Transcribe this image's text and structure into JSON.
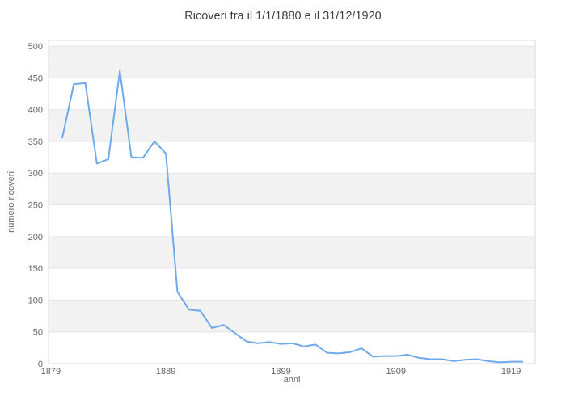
{
  "title": "Ricoveri tra il 1/1/1880 e il 31/12/1920",
  "chart_data": {
    "type": "line",
    "title": "Ricoveri tra il 1/1/1880 e il 31/12/1920",
    "xlabel": "anni",
    "ylabel": "numero ricoveri",
    "x_ticks": [
      1879,
      1889,
      1899,
      1909,
      1919
    ],
    "y_ticks": [
      0,
      50,
      100,
      150,
      200,
      250,
      300,
      350,
      400,
      450,
      500
    ],
    "xlim": [
      1878.8,
      1921.1
    ],
    "ylim": [
      0,
      509
    ],
    "grid": "horizontal-with-alternating-bands",
    "legend": "none",
    "series": [
      {
        "x": [
          1880,
          1881,
          1882,
          1883,
          1884,
          1885,
          1886,
          1887,
          1888,
          1889,
          1890,
          1891,
          1892,
          1893,
          1894,
          1895,
          1896,
          1897,
          1898,
          1899,
          1900,
          1901,
          1902,
          1903,
          1904,
          1905,
          1906,
          1907,
          1908,
          1909,
          1910,
          1911,
          1912,
          1913,
          1914,
          1915,
          1916,
          1917,
          1918,
          1919,
          1920
        ],
        "values": [
          356,
          440,
          442,
          315,
          322,
          461,
          325,
          324,
          350,
          331,
          113,
          85,
          83,
          56,
          61,
          48,
          35,
          32,
          34,
          31,
          32,
          27,
          30,
          17,
          16,
          18,
          24,
          11,
          12,
          12,
          14,
          9,
          7,
          7,
          4,
          6,
          7,
          4,
          2,
          3,
          3
        ]
      }
    ],
    "colors": {
      "line": "#6eaaeb",
      "band": "#f2f2f2",
      "grid": "#e6e6e6",
      "border": "#d9d9d9",
      "tick_label": "#666666",
      "title": "#3f3f3f",
      "background": "#ffffff"
    }
  }
}
